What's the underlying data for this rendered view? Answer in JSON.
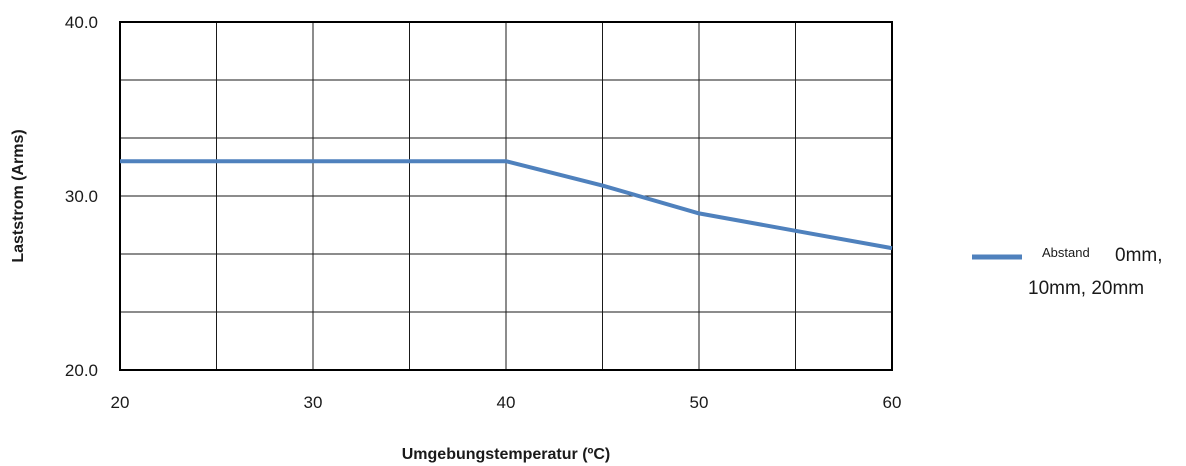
{
  "chart_data": {
    "type": "line",
    "xlabel": "Umgebungstemperatur (ºC)",
    "ylabel": "Laststrom (Arms)",
    "xlim": [
      20,
      60
    ],
    "ylim": [
      20,
      40
    ],
    "x_ticks": [
      20,
      30,
      40,
      50,
      60
    ],
    "x_tick_labels": [
      "20",
      "30",
      "40",
      "50",
      "60"
    ],
    "y_ticks": [
      20,
      30,
      40
    ],
    "y_tick_labels": [
      "20.0",
      "30.0",
      "40.0"
    ],
    "grid": true,
    "grid_x_step": 5,
    "grid_y_step": 3.33,
    "legend_position": "right",
    "series": [
      {
        "name": "Abstand 0mm, 10mm, 20mm",
        "name_parts": [
          "Abstand",
          "0mm,",
          "10mm, 20mm"
        ],
        "color": "#4f81bd",
        "x": [
          20,
          40,
          45,
          50,
          55,
          60
        ],
        "y": [
          32,
          32,
          30.6,
          29,
          28,
          27
        ]
      }
    ]
  }
}
